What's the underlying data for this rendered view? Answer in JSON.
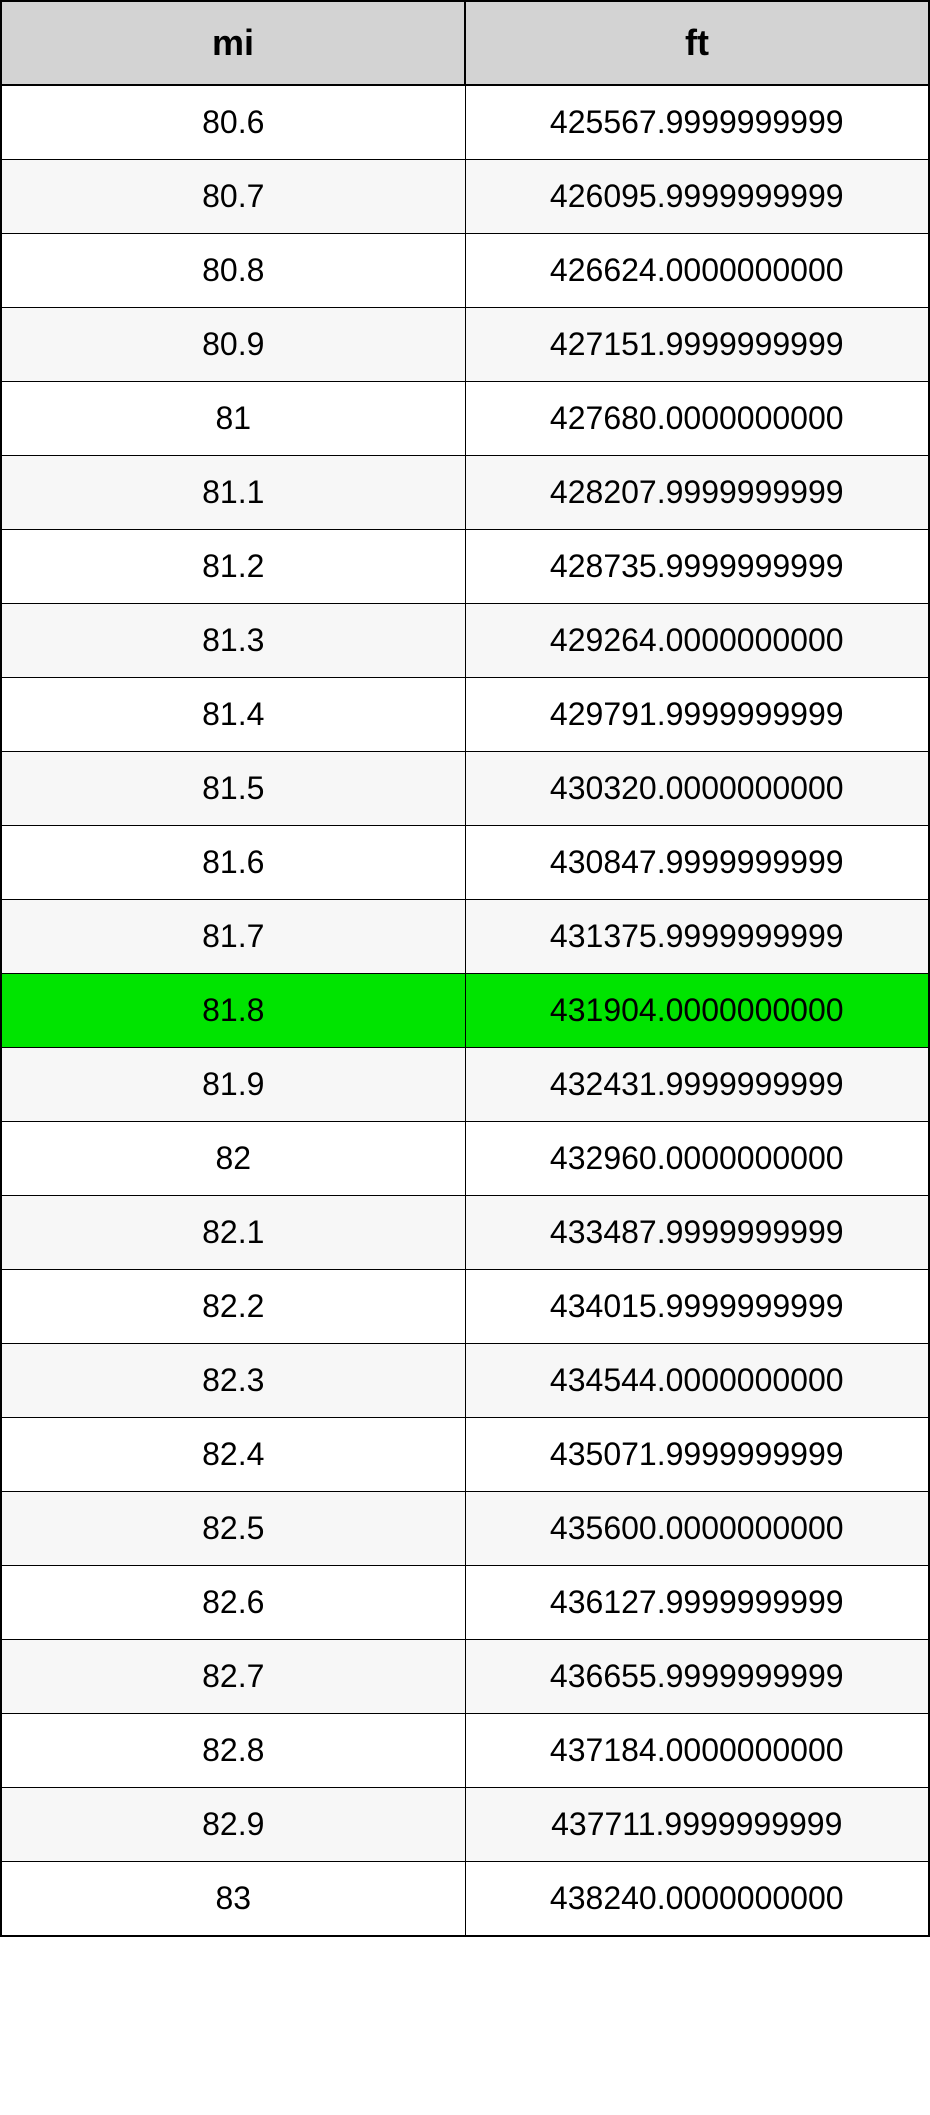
{
  "table": {
    "type": "table",
    "columns": [
      "mi",
      "ft"
    ],
    "column_widths": [
      "50%",
      "50%"
    ],
    "header_background": "#d3d3d3",
    "header_font_size": 36,
    "header_font_weight": "bold",
    "cell_font_size": 32,
    "border_color": "#000000",
    "odd_row_background": "#ffffff",
    "even_row_background": "#f7f7f7",
    "highlight_background": "#00e400",
    "highlighted_row_index": 12,
    "rows": [
      {
        "mi": "80.6",
        "ft": "425567.9999999999"
      },
      {
        "mi": "80.7",
        "ft": "426095.9999999999"
      },
      {
        "mi": "80.8",
        "ft": "426624.0000000000"
      },
      {
        "mi": "80.9",
        "ft": "427151.9999999999"
      },
      {
        "mi": "81",
        "ft": "427680.0000000000"
      },
      {
        "mi": "81.1",
        "ft": "428207.9999999999"
      },
      {
        "mi": "81.2",
        "ft": "428735.9999999999"
      },
      {
        "mi": "81.3",
        "ft": "429264.0000000000"
      },
      {
        "mi": "81.4",
        "ft": "429791.9999999999"
      },
      {
        "mi": "81.5",
        "ft": "430320.0000000000"
      },
      {
        "mi": "81.6",
        "ft": "430847.9999999999"
      },
      {
        "mi": "81.7",
        "ft": "431375.9999999999"
      },
      {
        "mi": "81.8",
        "ft": "431904.0000000000"
      },
      {
        "mi": "81.9",
        "ft": "432431.9999999999"
      },
      {
        "mi": "82",
        "ft": "432960.0000000000"
      },
      {
        "mi": "82.1",
        "ft": "433487.9999999999"
      },
      {
        "mi": "82.2",
        "ft": "434015.9999999999"
      },
      {
        "mi": "82.3",
        "ft": "434544.0000000000"
      },
      {
        "mi": "82.4",
        "ft": "435071.9999999999"
      },
      {
        "mi": "82.5",
        "ft": "435600.0000000000"
      },
      {
        "mi": "82.6",
        "ft": "436127.9999999999"
      },
      {
        "mi": "82.7",
        "ft": "436655.9999999999"
      },
      {
        "mi": "82.8",
        "ft": "437184.0000000000"
      },
      {
        "mi": "82.9",
        "ft": "437711.9999999999"
      },
      {
        "mi": "83",
        "ft": "438240.0000000000"
      }
    ]
  }
}
